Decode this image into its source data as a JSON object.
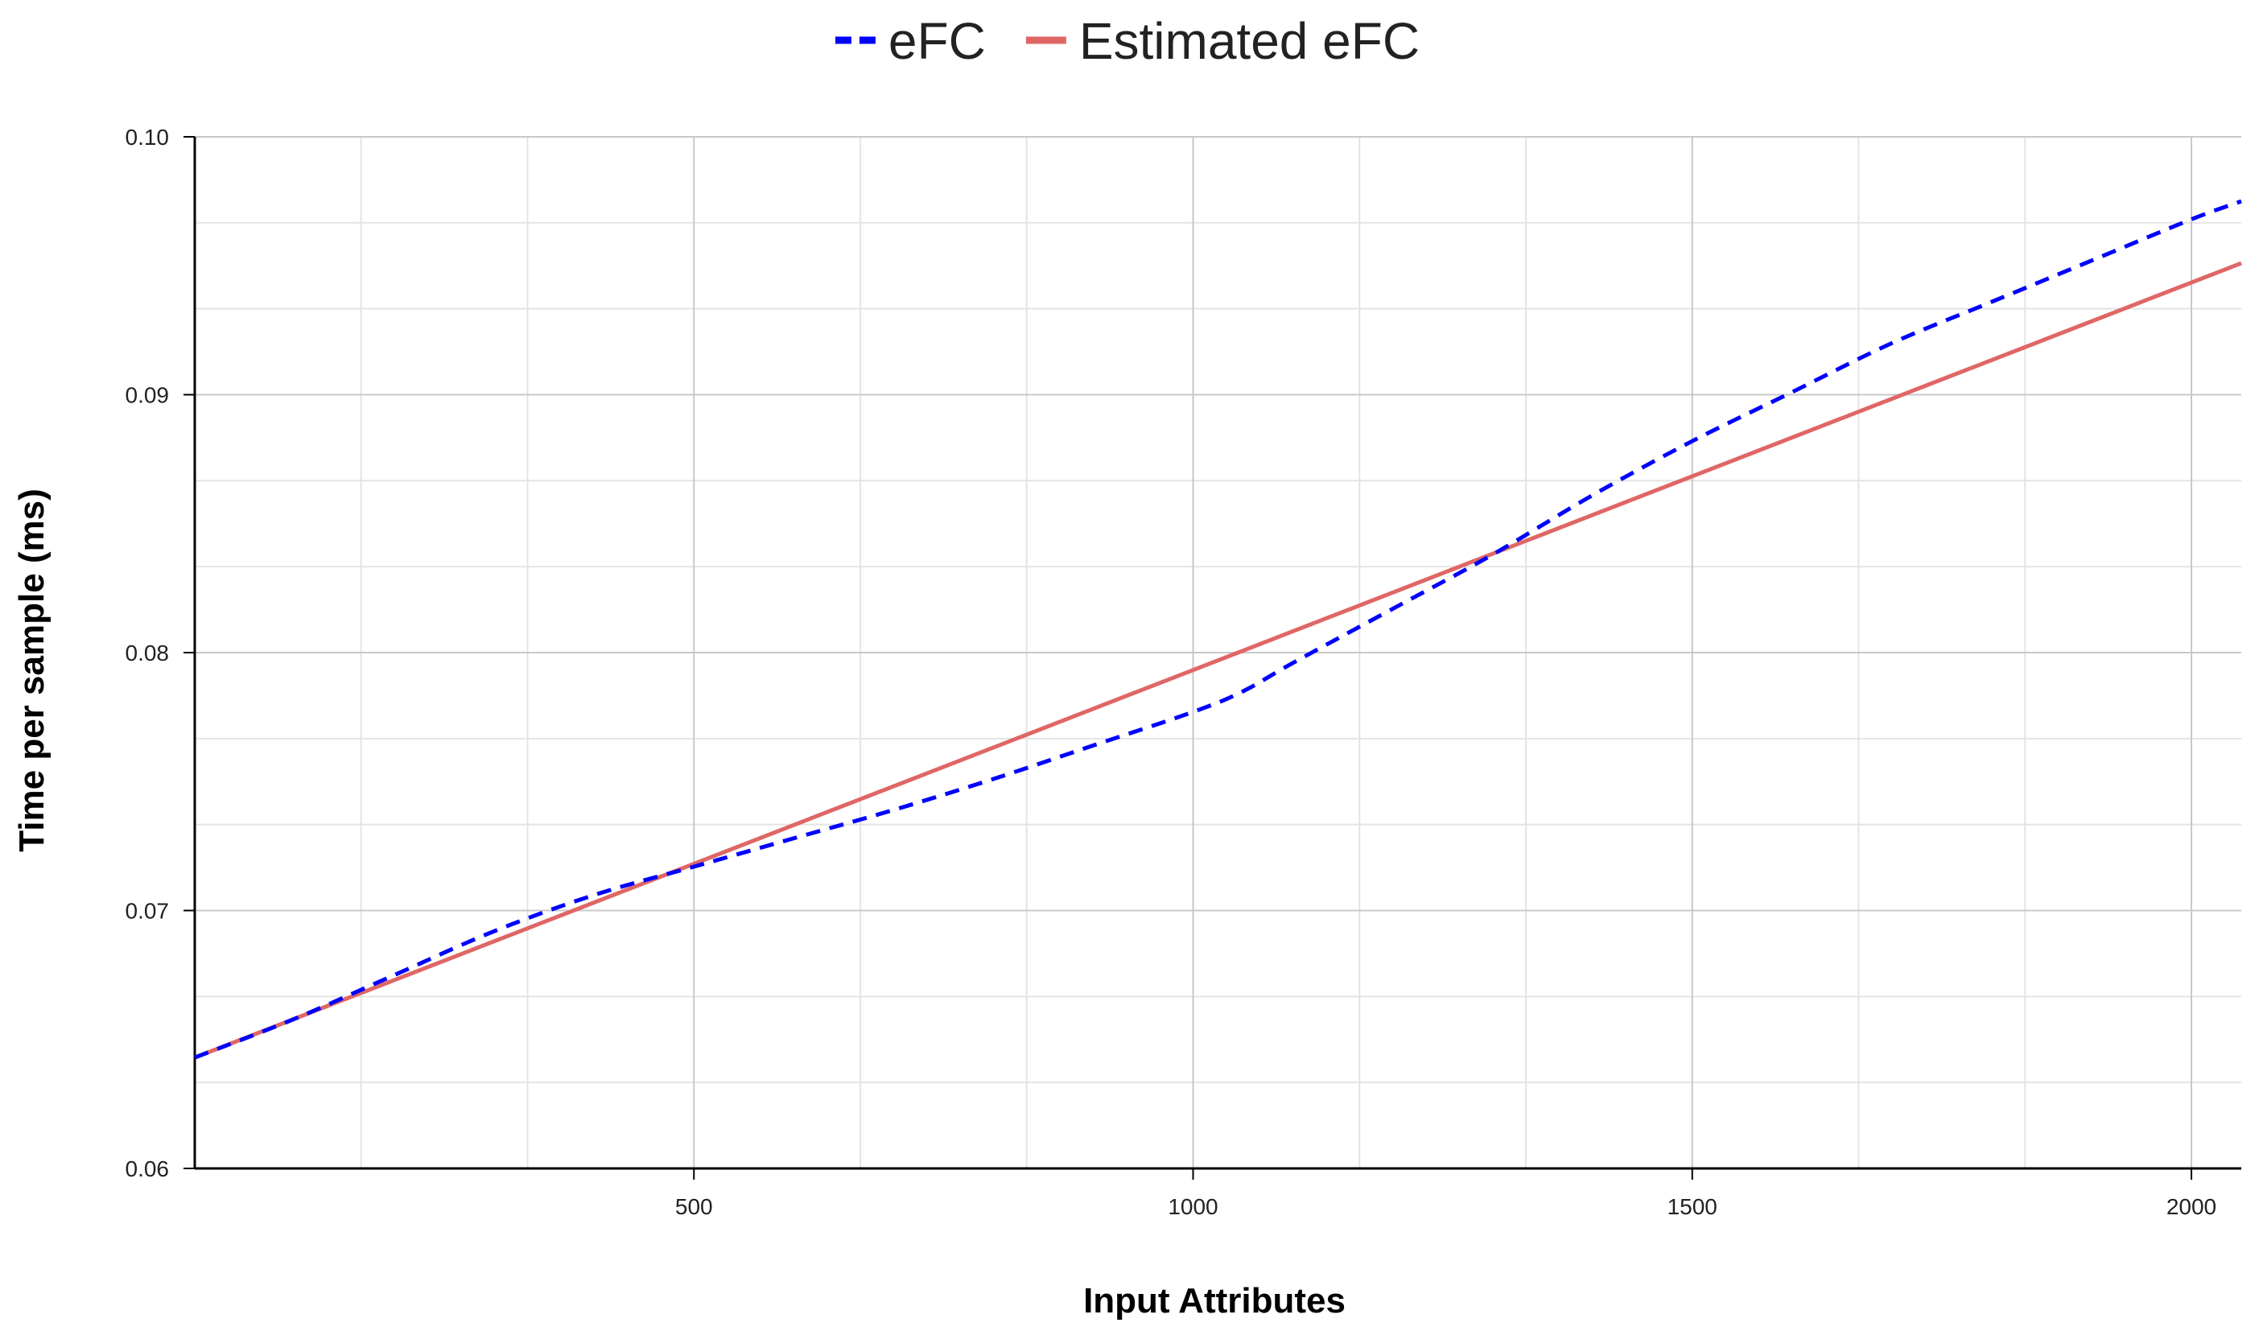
{
  "chart_data": {
    "type": "line",
    "xlabel": "Input Attributes",
    "ylabel": "Time per sample (ms)",
    "xlim": [
      0,
      2050
    ],
    "ylim": [
      0.06,
      0.1
    ],
    "x_ticks": [
      500,
      1000,
      1500,
      2000
    ],
    "x_tick_labels": [
      "500",
      "1000",
      "1500",
      "2000"
    ],
    "y_ticks": [
      0.06,
      0.07,
      0.08,
      0.09,
      0.1
    ],
    "y_tick_labels": [
      "0.06",
      "0.07",
      "0.08",
      "0.09",
      "0.10"
    ],
    "grid": true,
    "legend_position": "top-center",
    "series": [
      {
        "name": "eFC",
        "color": "#0000ff",
        "style": "dashed",
        "x": [
          0,
          100,
          200,
          300,
          400,
          500,
          600,
          700,
          800,
          900,
          1000,
          1050,
          1100,
          1200,
          1300,
          1400,
          1500,
          1600,
          1700,
          1800,
          1900,
          2000,
          2050
        ],
        "y": [
          0.0643,
          0.0658,
          0.0675,
          0.0692,
          0.0706,
          0.0717,
          0.0728,
          0.0739,
          0.0751,
          0.0764,
          0.0777,
          0.0785,
          0.0796,
          0.0817,
          0.0838,
          0.0861,
          0.0882,
          0.0901,
          0.092,
          0.0936,
          0.0952,
          0.0968,
          0.0975
        ]
      },
      {
        "name": "Estimated eFC",
        "color": "#e06666",
        "style": "solid",
        "x": [
          0,
          2050
        ],
        "y": [
          0.0643,
          0.0951
        ]
      }
    ]
  }
}
